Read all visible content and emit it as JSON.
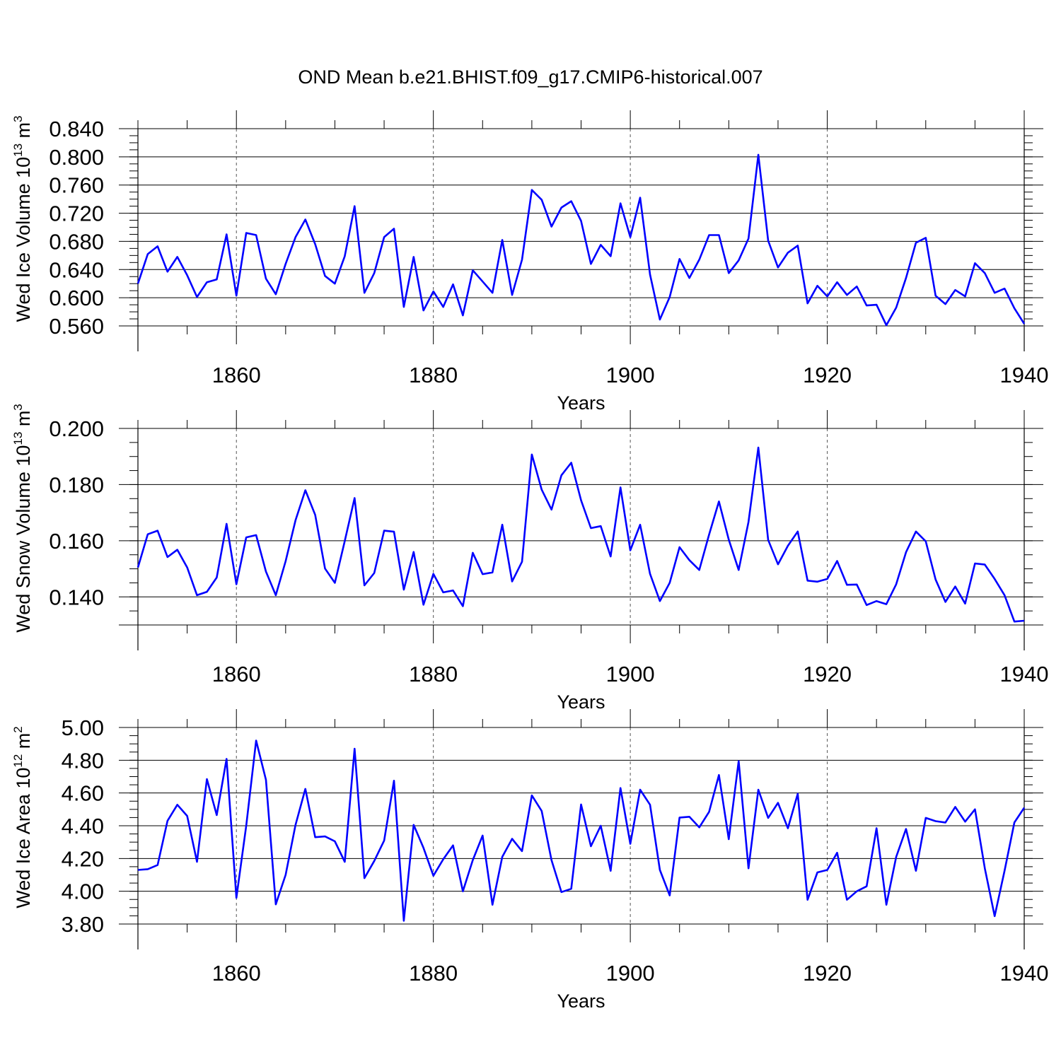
{
  "title": "OND Mean b.e21.BHIST.f09_g17.CMIP6-historical.007",
  "line_color": "#0000ff",
  "chart_data": [
    {
      "type": "line",
      "ylabel_main": "Wed Ice Volume 10",
      "ylabel_sup": "13",
      "ylabel_unit": " m",
      "ylabel_unit_sup": "3",
      "xlabel": "Years",
      "xlim": [
        1850,
        1940
      ],
      "ylim": [
        0.56,
        0.84
      ],
      "yticks": [
        0.56,
        0.6,
        0.64,
        0.68,
        0.72,
        0.76,
        0.8,
        0.84
      ],
      "ytick_labels": [
        "0.560",
        "0.600",
        "0.640",
        "0.680",
        "0.720",
        "0.760",
        "0.800",
        "0.840"
      ],
      "xticks": [
        1860,
        1880,
        1900,
        1920,
        1940
      ],
      "xtick_labels": [
        "1860",
        "1880",
        "1900",
        "1920",
        "1940"
      ],
      "x_start": 1850,
      "values": [
        0.62,
        0.662,
        0.673,
        0.637,
        0.658,
        0.632,
        0.601,
        0.622,
        0.626,
        0.69,
        0.603,
        0.692,
        0.689,
        0.627,
        0.605,
        0.648,
        0.686,
        0.711,
        0.676,
        0.631,
        0.62,
        0.659,
        0.73,
        0.607,
        0.635,
        0.686,
        0.698,
        0.587,
        0.658,
        0.582,
        0.609,
        0.587,
        0.619,
        0.575,
        0.639,
        0.623,
        0.607,
        0.682,
        0.604,
        0.654,
        0.753,
        0.739,
        0.701,
        0.728,
        0.737,
        0.709,
        0.648,
        0.675,
        0.659,
        0.734,
        0.686,
        0.742,
        0.633,
        0.569,
        0.601,
        0.655,
        0.628,
        0.654,
        0.689,
        0.689,
        0.635,
        0.653,
        0.684,
        0.803,
        0.681,
        0.643,
        0.664,
        0.674,
        0.592,
        0.617,
        0.602,
        0.622,
        0.604,
        0.616,
        0.589,
        0.59,
        0.561,
        0.586,
        0.628,
        0.678,
        0.685,
        0.603,
        0.591,
        0.611,
        0.602,
        0.649,
        0.635,
        0.607,
        0.613,
        0.585,
        0.563
      ]
    },
    {
      "type": "line",
      "ylabel_main": "Wed Snow Volume 10",
      "ylabel_sup": "13",
      "ylabel_unit": " m",
      "ylabel_unit_sup": "3",
      "xlabel": "Years",
      "xlim": [
        1850,
        1940
      ],
      "ylim": [
        0.13,
        0.2
      ],
      "yticks": [
        0.14,
        0.16,
        0.18,
        0.2
      ],
      "ytick_labels": [
        "0.140",
        "0.160",
        "0.180",
        "0.200"
      ],
      "xticks": [
        1860,
        1880,
        1900,
        1920,
        1940
      ],
      "xtick_labels": [
        "1860",
        "1880",
        "1900",
        "1920",
        "1940"
      ],
      "x_start": 1850,
      "values": [
        0.1505,
        0.1623,
        0.1636,
        0.1542,
        0.1568,
        0.1505,
        0.1406,
        0.1418,
        0.1469,
        0.166,
        0.1445,
        0.1612,
        0.162,
        0.149,
        0.1406,
        0.1527,
        0.1673,
        0.178,
        0.1692,
        0.1501,
        0.145,
        0.1599,
        0.1752,
        0.1441,
        0.1485,
        0.1636,
        0.1632,
        0.1426,
        0.156,
        0.1372,
        0.1482,
        0.1416,
        0.1423,
        0.1367,
        0.1557,
        0.1481,
        0.1487,
        0.1657,
        0.1455,
        0.1525,
        0.1907,
        0.1782,
        0.1711,
        0.1833,
        0.1878,
        0.1744,
        0.1645,
        0.1652,
        0.1544,
        0.179,
        0.1566,
        0.1657,
        0.1482,
        0.1385,
        0.145,
        0.1577,
        0.1531,
        0.1496,
        0.1622,
        0.174,
        0.1604,
        0.1496,
        0.1667,
        0.1932,
        0.1603,
        0.1516,
        0.1582,
        0.1633,
        0.1458,
        0.1454,
        0.1464,
        0.1528,
        0.1443,
        0.1444,
        0.1371,
        0.1385,
        0.1374,
        0.1445,
        0.1559,
        0.1633,
        0.1598,
        0.1462,
        0.1382,
        0.1437,
        0.1376,
        0.1519,
        0.1515,
        0.1464,
        0.1406,
        0.1312,
        0.1315
      ]
    },
    {
      "type": "line",
      "ylabel_main": "Wed Ice Area 10",
      "ylabel_sup": "12",
      "ylabel_unit": " m",
      "ylabel_unit_sup": "2",
      "xlabel": "Years",
      "xlim": [
        1850,
        1940
      ],
      "ylim": [
        3.8,
        5.0
      ],
      "yticks": [
        3.8,
        4.0,
        4.2,
        4.4,
        4.6,
        4.8,
        5.0
      ],
      "ytick_labels": [
        "3.80",
        "4.00",
        "4.20",
        "4.40",
        "4.60",
        "4.80",
        "5.00"
      ],
      "xticks": [
        1860,
        1880,
        1900,
        1920,
        1940
      ],
      "xtick_labels": [
        "1860",
        "1880",
        "1900",
        "1920",
        "1940"
      ],
      "x_start": 1850,
      "values": [
        4.13,
        4.135,
        4.16,
        4.43,
        4.528,
        4.46,
        4.18,
        4.685,
        4.465,
        4.808,
        3.96,
        4.4,
        4.92,
        4.68,
        3.92,
        4.1,
        4.405,
        4.625,
        4.33,
        4.335,
        4.305,
        4.18,
        4.87,
        4.08,
        4.185,
        4.31,
        4.675,
        3.82,
        4.405,
        4.265,
        4.095,
        4.195,
        4.28,
        4.0,
        4.19,
        4.34,
        3.918,
        4.21,
        4.32,
        4.245,
        4.585,
        4.49,
        4.19,
        3.995,
        4.015,
        4.53,
        4.275,
        4.4,
        4.125,
        4.63,
        4.29,
        4.62,
        4.528,
        4.13,
        3.975,
        4.45,
        4.455,
        4.39,
        4.485,
        4.71,
        4.318,
        4.795,
        4.14,
        4.62,
        4.448,
        4.54,
        4.385,
        4.595,
        3.948,
        4.115,
        4.13,
        4.235,
        3.948,
        4.0,
        4.03,
        4.385,
        3.918,
        4.21,
        4.38,
        4.125,
        4.448,
        4.428,
        4.42,
        4.515,
        4.425,
        4.5,
        4.14,
        3.848,
        4.125,
        4.42,
        4.51
      ]
    }
  ]
}
